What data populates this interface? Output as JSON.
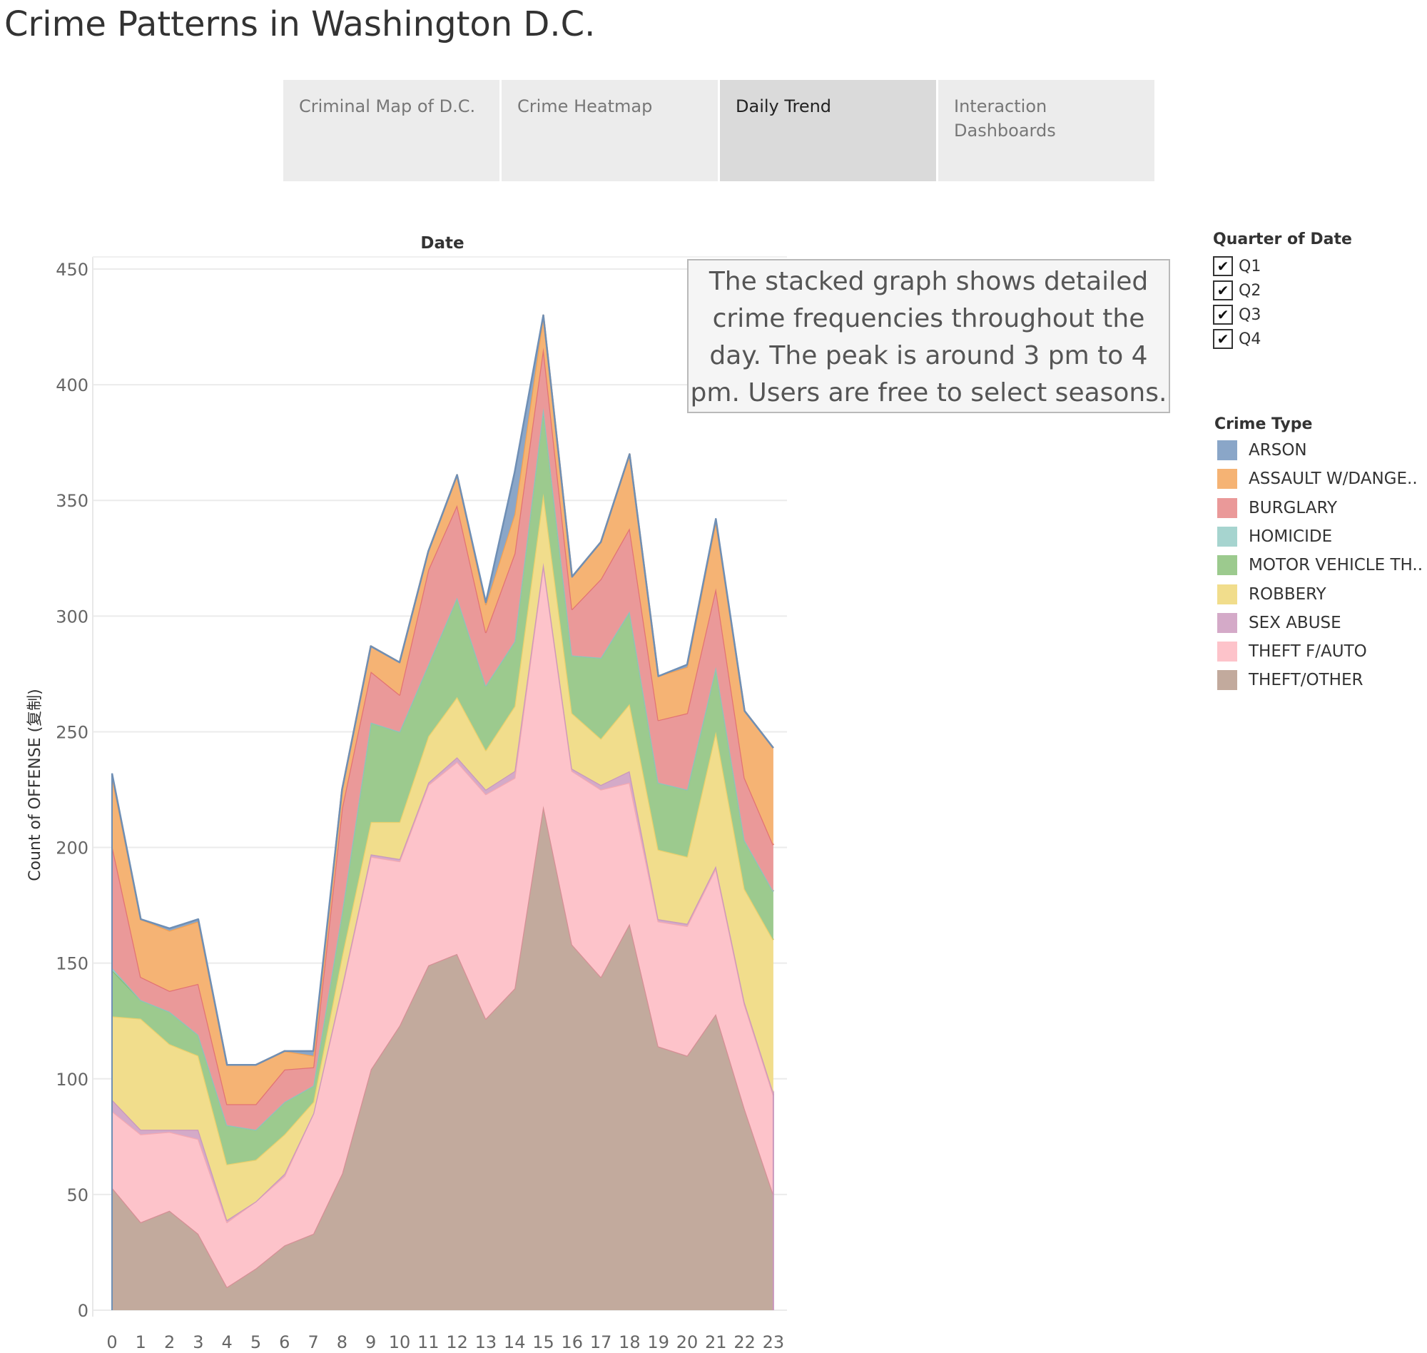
{
  "title": "Crime Patterns in Washington D.C.",
  "tabs": [
    {
      "label": "Criminal Map of D.C.",
      "active": false
    },
    {
      "label": "Crime Heatmap",
      "active": false
    },
    {
      "label": "Daily Trend",
      "active": true
    },
    {
      "label": "Interaction Dashboards",
      "active": false
    }
  ],
  "annotation": "The stacked graph shows detailed crime frequencies throughout the day. The peak is around 3 pm to 4 pm. Users are free to select seasons.",
  "quarter_filter": {
    "title": "Quarter of Date",
    "items": [
      {
        "label": "Q1",
        "checked": true,
        "mark": "✔"
      },
      {
        "label": "Q2",
        "checked": true,
        "mark": "✔"
      },
      {
        "label": "Q3",
        "checked": true,
        "mark": "✔"
      },
      {
        "label": "Q4",
        "checked": true,
        "mark": "✔"
      }
    ]
  },
  "crime_legend": {
    "title": "Crime Type",
    "items": [
      {
        "label": "ARSON",
        "color": "#8aa6c8"
      },
      {
        "label": "ASSAULT W/DANGE..",
        "color": "#f5b374"
      },
      {
        "label": "BURGLARY",
        "color": "#ea9999"
      },
      {
        "label": "HOMICIDE",
        "color": "#a6d4cf"
      },
      {
        "label": "MOTOR VEHICLE TH..",
        "color": "#9cca8e"
      },
      {
        "label": "ROBBERY",
        "color": "#f1dd8c"
      },
      {
        "label": "SEX ABUSE",
        "color": "#d4aac8"
      },
      {
        "label": "THEFT F/AUTO",
        "color": "#fdc3ca"
      },
      {
        "label": "THEFT/OTHER",
        "color": "#c2aa9d"
      }
    ]
  },
  "chart_data": {
    "type": "area",
    "stacked": true,
    "title": "Date",
    "xlabel": "",
    "ylabel": "Count of OFFENSE (复制)",
    "x": [
      0,
      1,
      2,
      3,
      4,
      5,
      6,
      7,
      8,
      9,
      10,
      11,
      12,
      13,
      14,
      15,
      16,
      17,
      18,
      19,
      20,
      21,
      22,
      23
    ],
    "ylim": [
      0,
      450
    ],
    "yticks": [
      0,
      50,
      100,
      150,
      200,
      250,
      300,
      350,
      400,
      450
    ],
    "grid": true,
    "series": [
      {
        "name": "THEFT/OTHER",
        "color": "#c2aa9d",
        "stroke": "#d58f95",
        "values": [
          53,
          38,
          43,
          33,
          10,
          18,
          28,
          33,
          59,
          104,
          123,
          149,
          154,
          126,
          139,
          218,
          158,
          144,
          167,
          114,
          110,
          128,
          87,
          50
        ]
      },
      {
        "name": "THEFT F/AUTO",
        "color": "#fdc3ca",
        "stroke": "#f4a9b2",
        "values": [
          33,
          38,
          34,
          41,
          28,
          29,
          30,
          52,
          80,
          92,
          71,
          78,
          83,
          97,
          91,
          104,
          75,
          81,
          61,
          54,
          56,
          63,
          45,
          43
        ]
      },
      {
        "name": "SEX ABUSE",
        "color": "#d4aac8",
        "stroke": "#c998bd",
        "values": [
          5,
          2,
          1,
          4,
          1,
          0,
          1,
          0,
          1,
          1,
          1,
          1,
          2,
          2,
          3,
          1,
          1,
          2,
          5,
          1,
          1,
          1,
          1,
          1
        ]
      },
      {
        "name": "ROBBERY",
        "color": "#f1dd8c",
        "stroke": "#ead06c",
        "values": [
          36,
          48,
          37,
          32,
          24,
          18,
          17,
          5,
          13,
          14,
          16,
          20,
          26,
          17,
          28,
          30,
          24,
          20,
          29,
          30,
          29,
          58,
          49,
          66
        ]
      },
      {
        "name": "MOTOR VEHICLE TH..",
        "color": "#9cca8e",
        "stroke": "#86bd76",
        "values": [
          20,
          8,
          14,
          9,
          17,
          13,
          14,
          7,
          19,
          43,
          39,
          31,
          43,
          28,
          28,
          37,
          25,
          35,
          40,
          29,
          29,
          28,
          21,
          21
        ]
      },
      {
        "name": "HOMICIDE",
        "color": "#a6d4cf",
        "stroke": "#8cc5bf",
        "values": [
          1,
          0,
          0,
          0,
          0,
          0,
          0,
          0,
          0,
          0,
          0,
          0,
          0,
          0,
          0,
          0,
          0,
          0,
          0,
          0,
          0,
          0,
          0,
          0
        ]
      },
      {
        "name": "BURGLARY",
        "color": "#ea9999",
        "stroke": "#e27373",
        "values": [
          53,
          10,
          9,
          22,
          9,
          11,
          14,
          8,
          45,
          22,
          16,
          41,
          40,
          23,
          38,
          26,
          20,
          34,
          36,
          27,
          33,
          34,
          27,
          20
        ]
      },
      {
        "name": "ASSAULT W/DANGE..",
        "color": "#f5b374",
        "stroke": "#f2a153",
        "values": [
          30,
          25,
          26,
          27,
          17,
          17,
          8,
          5,
          8,
          11,
          14,
          8,
          13,
          12,
          17,
          14,
          14,
          16,
          32,
          19,
          20,
          29,
          29,
          42
        ]
      },
      {
        "name": "ARSON",
        "color": "#8aa6c8",
        "stroke": "#6f8fb5",
        "values": [
          1,
          0,
          1,
          1,
          0,
          0,
          0,
          2,
          0,
          0,
          0,
          0,
          0,
          1,
          18,
          0,
          0,
          0,
          0,
          0,
          1,
          1,
          0,
          0
        ]
      }
    ]
  }
}
